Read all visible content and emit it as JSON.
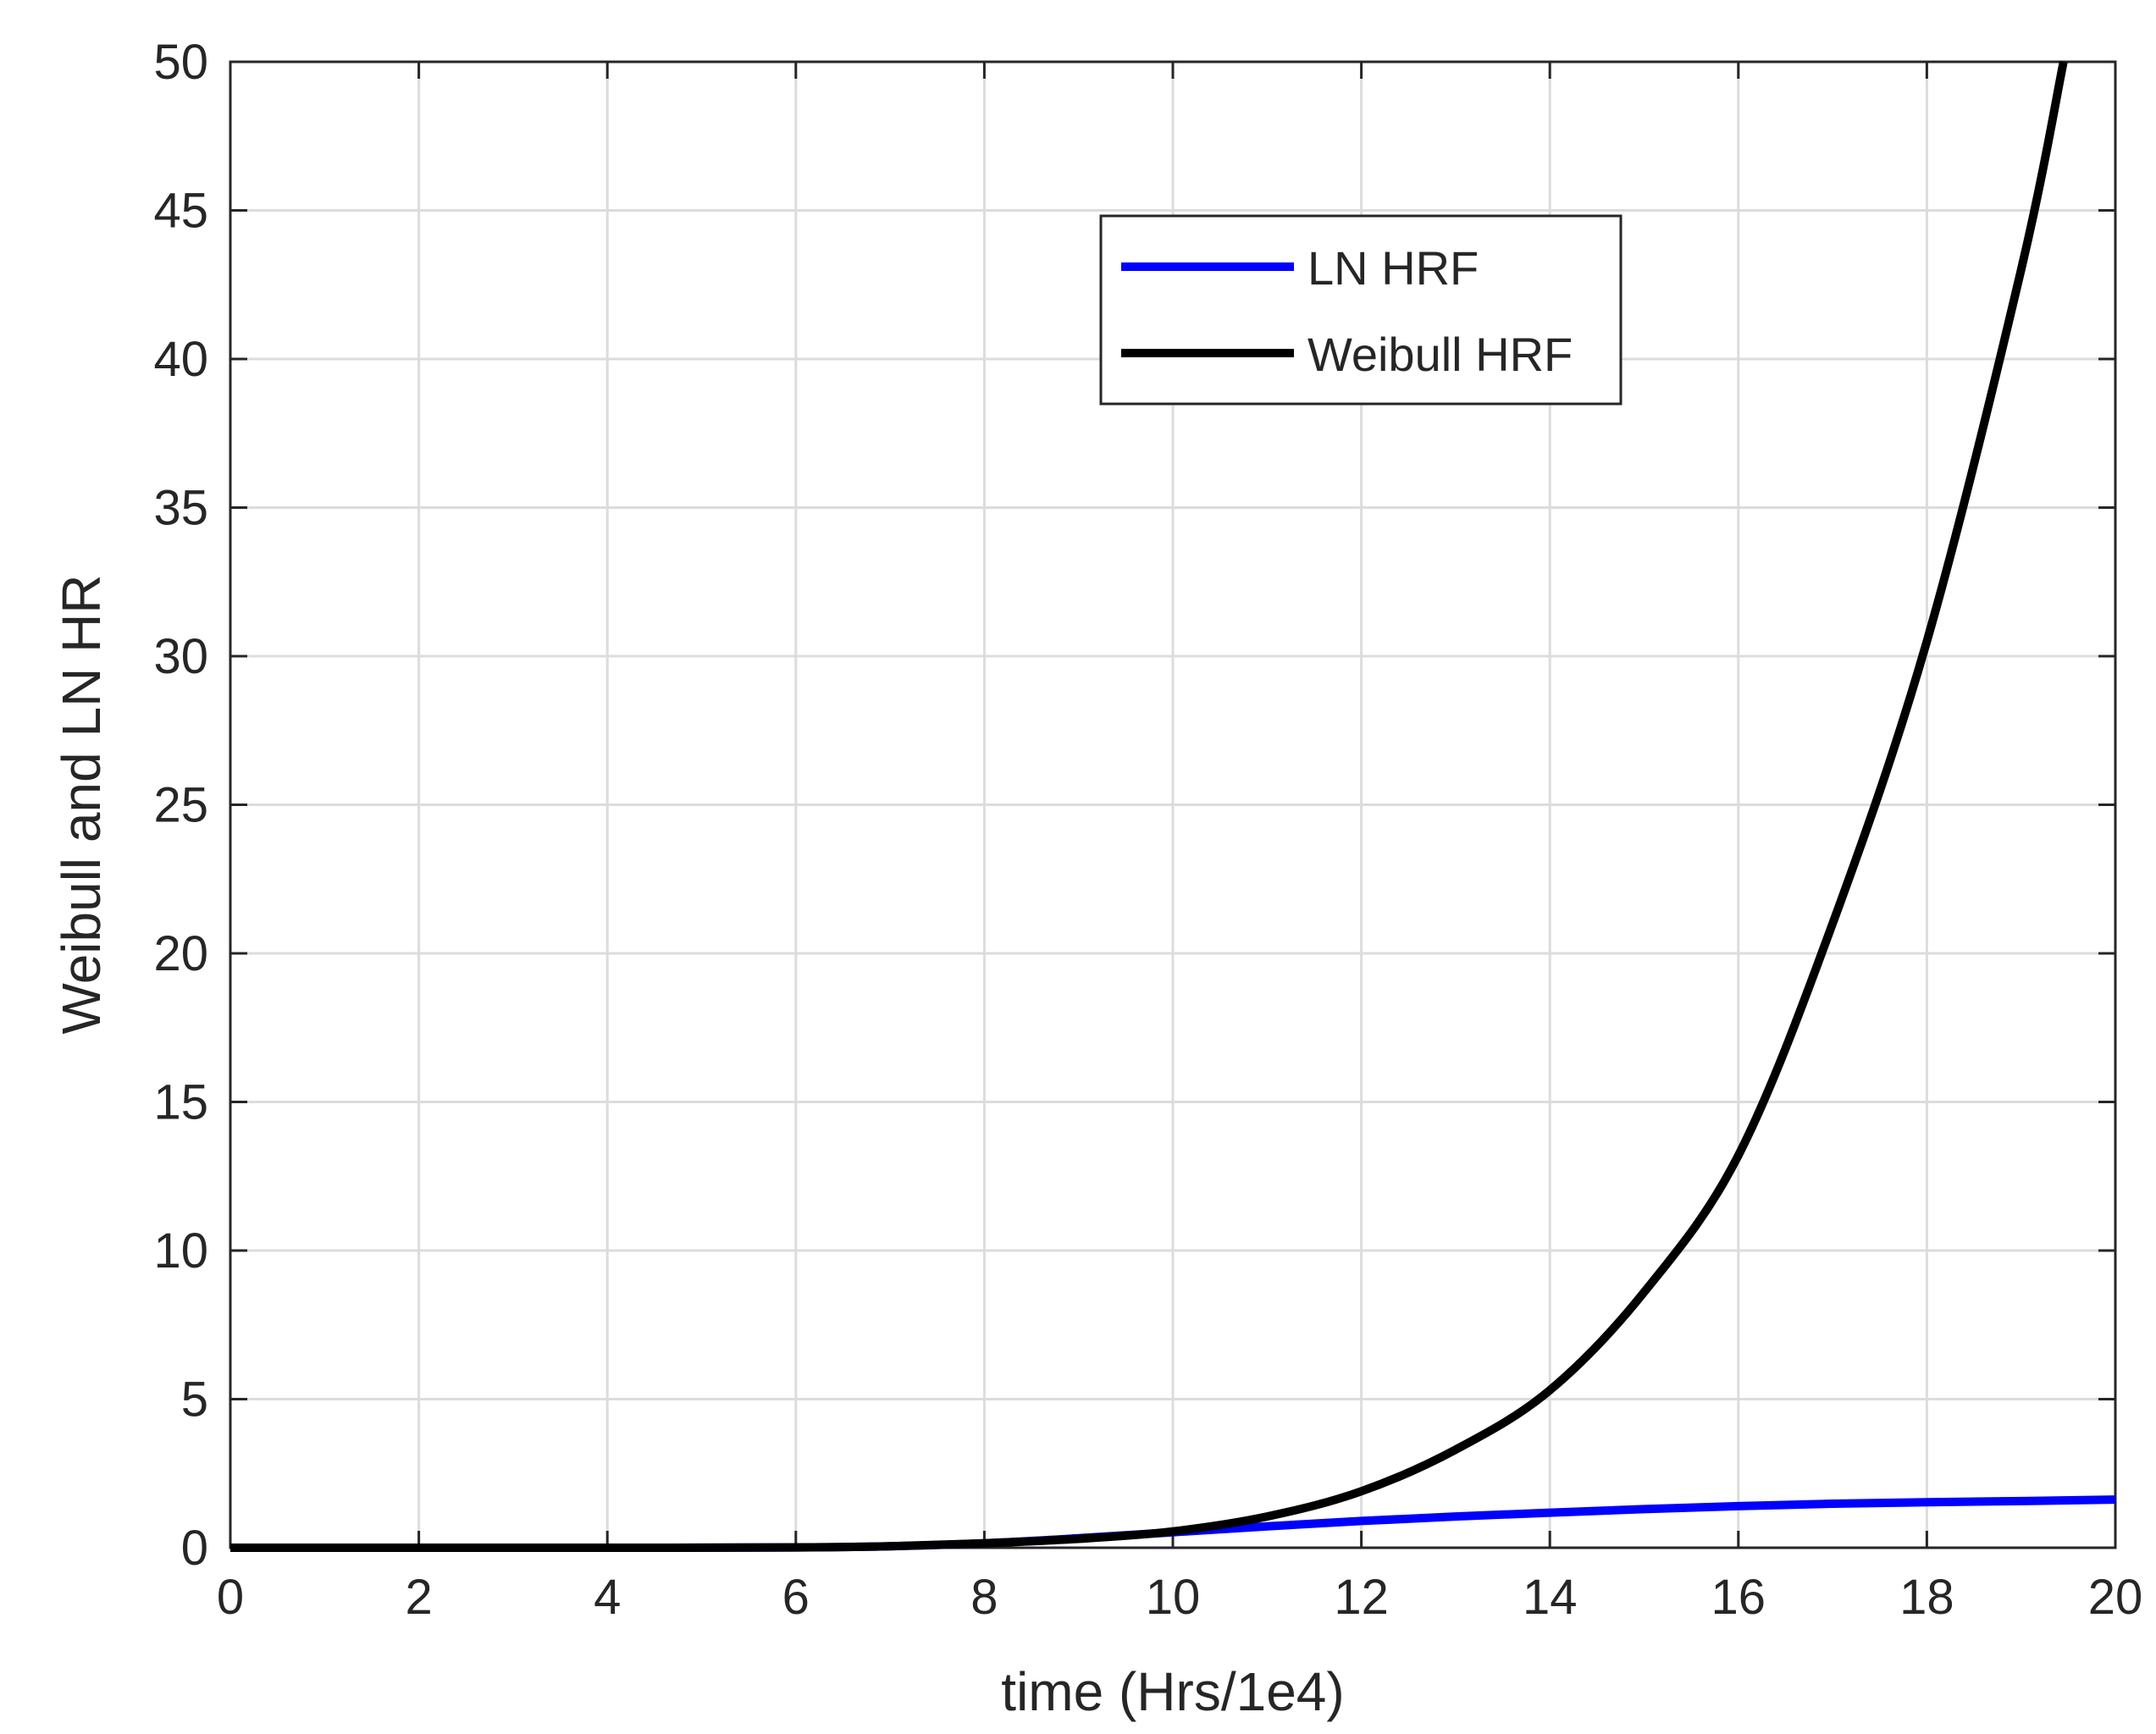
{
  "chart_data": {
    "type": "line",
    "title": "",
    "xlabel": "time (Hrs/1e4)",
    "ylabel": "Weibull and LN HR",
    "xlim": [
      0,
      20
    ],
    "ylim": [
      0,
      50
    ],
    "xticks": [
      "0",
      "2",
      "4",
      "6",
      "8",
      "10",
      "12",
      "14",
      "16",
      "18",
      "20"
    ],
    "yticks": [
      "0",
      "5",
      "10",
      "15",
      "20",
      "25",
      "30",
      "35",
      "40",
      "45",
      "50"
    ],
    "grid": true,
    "legend_position": "top-right",
    "series": [
      {
        "name": "LN HRF",
        "color": "#0000ff",
        "x": [
          0,
          2,
          4,
          6,
          7,
          8,
          9,
          10,
          11,
          12,
          13,
          14,
          15,
          16,
          17,
          18,
          19,
          20
        ],
        "y": [
          0,
          0,
          0,
          0.01,
          0.05,
          0.15,
          0.32,
          0.52,
          0.72,
          0.9,
          1.05,
          1.18,
          1.3,
          1.4,
          1.48,
          1.53,
          1.57,
          1.62
        ]
      },
      {
        "name": "Weibull HRF",
        "color": "#000000",
        "x": [
          0,
          2,
          4,
          6,
          7,
          8,
          9,
          10,
          11,
          12,
          13,
          14,
          15,
          16,
          17,
          18,
          19,
          19.45
        ],
        "y": [
          0,
          0,
          0,
          0.01,
          0.05,
          0.15,
          0.3,
          0.55,
          1.05,
          1.9,
          3.3,
          5.3,
          8.6,
          13.2,
          21,
          30.5,
          43,
          50
        ]
      }
    ]
  }
}
